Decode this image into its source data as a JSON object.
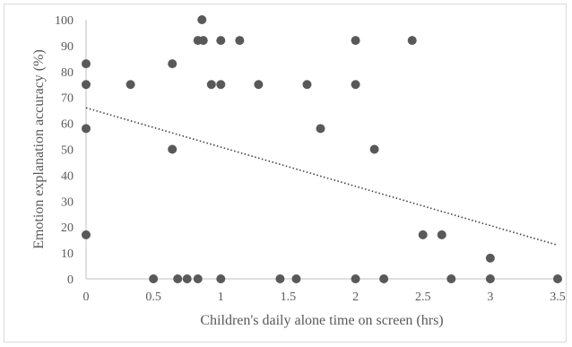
{
  "chart_data": {
    "type": "scatter",
    "xlabel": "Children's daily alone time on screen (hrs)",
    "ylabel": "Emotion explanation accuracy  (%)",
    "xlim": [
      0,
      3.5
    ],
    "ylim": [
      0,
      100
    ],
    "x_ticks": [
      "0",
      "0.5",
      "1",
      "1.5",
      "2",
      "2.5",
      "3",
      "3.5"
    ],
    "y_ticks": [
      "0",
      "10",
      "20",
      "30",
      "40",
      "50",
      "60",
      "70",
      "80",
      "90",
      "100"
    ],
    "grid": false,
    "legend": "none",
    "marker_color": "#595959",
    "trendline": {
      "style": "dotted linear",
      "color": "#404040",
      "x": [
        0,
        3.5
      ],
      "y": [
        66,
        13
      ]
    },
    "points": [
      {
        "x": 0,
        "y": 83
      },
      {
        "x": 0,
        "y": 75
      },
      {
        "x": 0,
        "y": 58
      },
      {
        "x": 0,
        "y": 17
      },
      {
        "x": 0.33,
        "y": 75
      },
      {
        "x": 0.5,
        "y": 0
      },
      {
        "x": 0.64,
        "y": 83
      },
      {
        "x": 0.64,
        "y": 50
      },
      {
        "x": 0.68,
        "y": 0
      },
      {
        "x": 0.75,
        "y": 0
      },
      {
        "x": 0.83,
        "y": 92
      },
      {
        "x": 0.83,
        "y": 0
      },
      {
        "x": 0.86,
        "y": 100
      },
      {
        "x": 0.87,
        "y": 92
      },
      {
        "x": 0.93,
        "y": 75
      },
      {
        "x": 1.0,
        "y": 92
      },
      {
        "x": 1.0,
        "y": 75
      },
      {
        "x": 1.0,
        "y": 0
      },
      {
        "x": 1.14,
        "y": 92
      },
      {
        "x": 1.28,
        "y": 75
      },
      {
        "x": 1.44,
        "y": 0
      },
      {
        "x": 1.56,
        "y": 0
      },
      {
        "x": 1.64,
        "y": 75
      },
      {
        "x": 1.74,
        "y": 58
      },
      {
        "x": 2.0,
        "y": 92
      },
      {
        "x": 2.0,
        "y": 75
      },
      {
        "x": 2.0,
        "y": 0
      },
      {
        "x": 2.14,
        "y": 50
      },
      {
        "x": 2.21,
        "y": 0
      },
      {
        "x": 2.42,
        "y": 92
      },
      {
        "x": 2.5,
        "y": 17
      },
      {
        "x": 2.64,
        "y": 17
      },
      {
        "x": 2.71,
        "y": 0
      },
      {
        "x": 3.0,
        "y": 8
      },
      {
        "x": 3.0,
        "y": 0
      },
      {
        "x": 3.5,
        "y": 0
      }
    ]
  }
}
